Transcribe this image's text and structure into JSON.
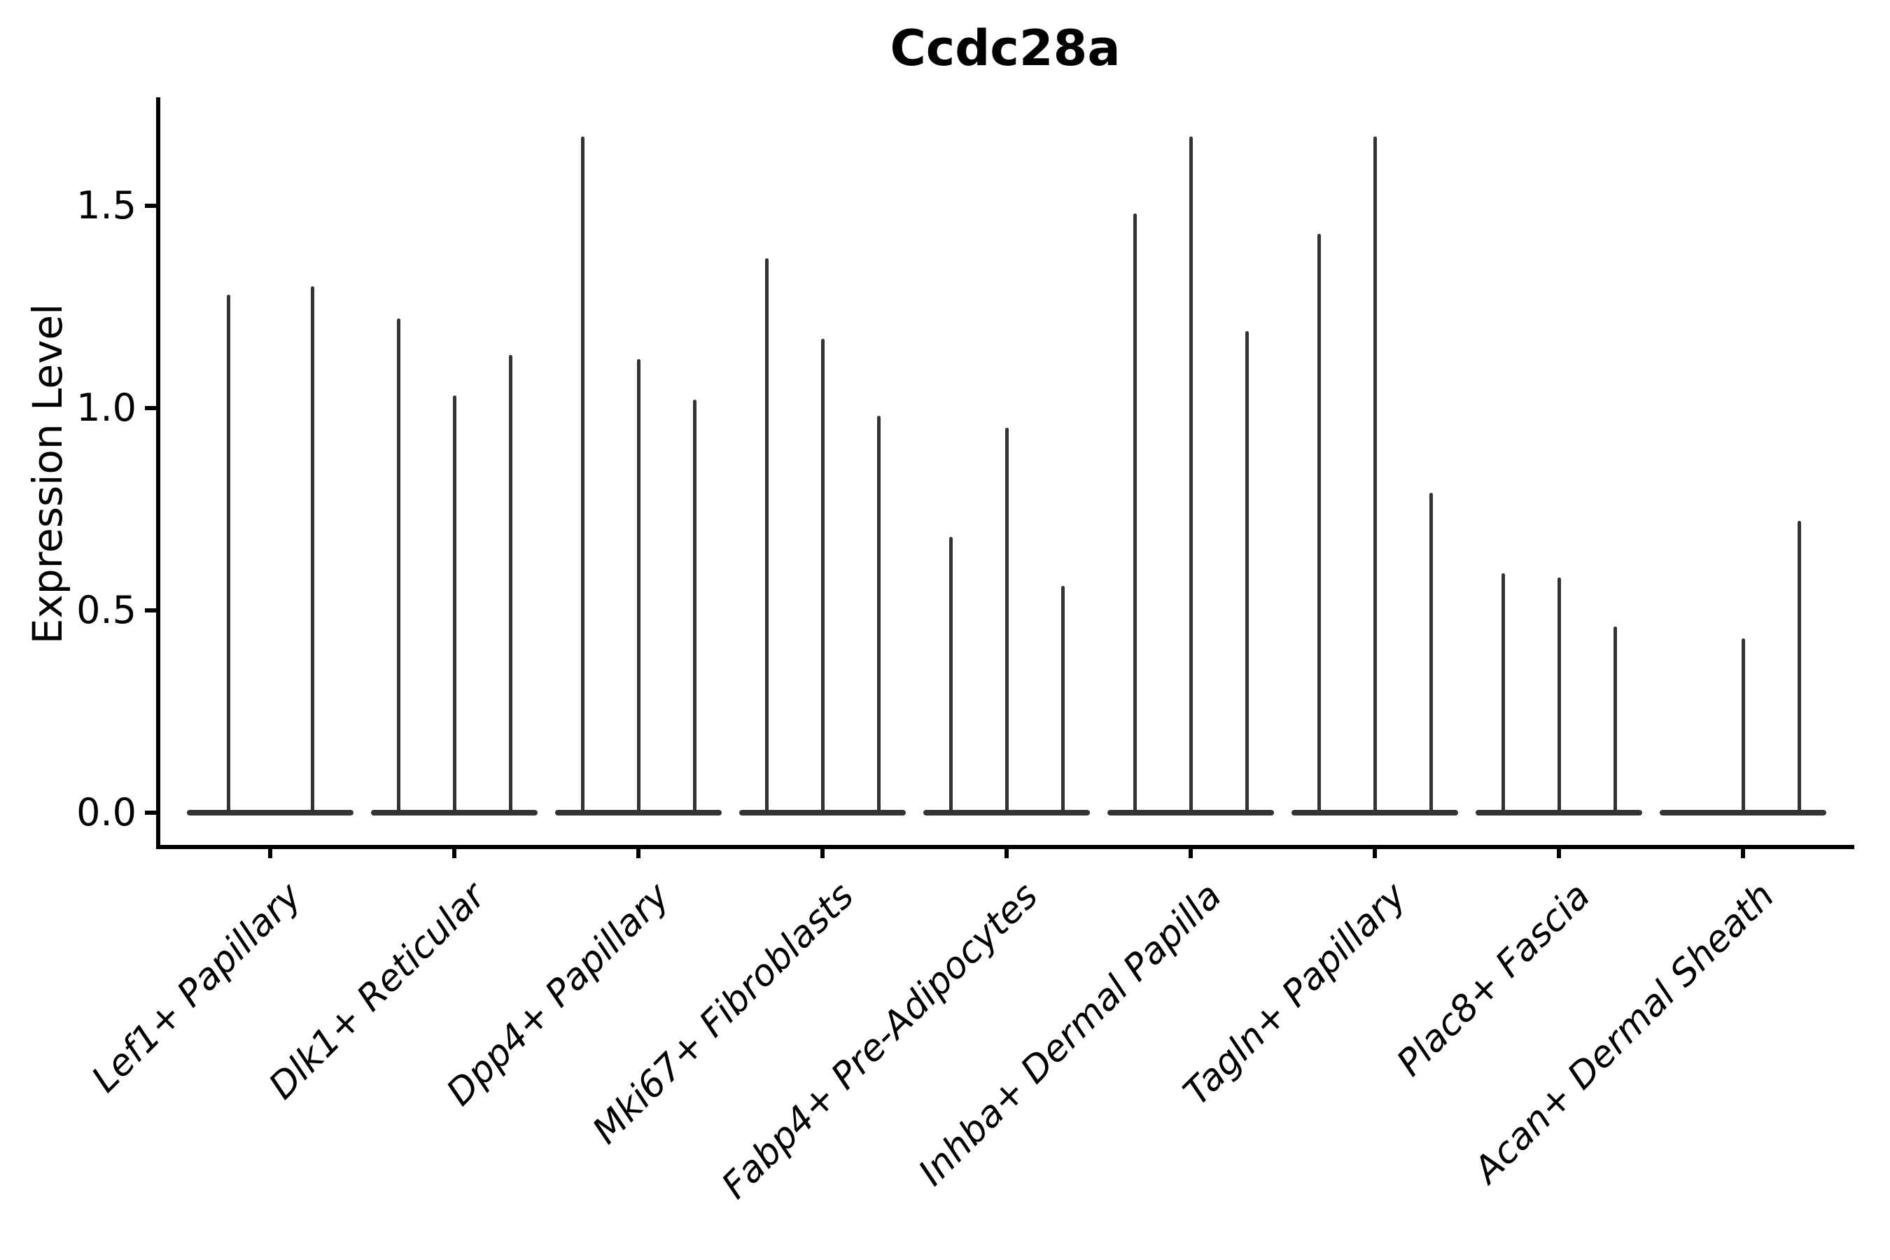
{
  "title": "Ccdc28a",
  "chart_data": {
    "type": "violin",
    "title": "Ccdc28a",
    "xlabel": "",
    "ylabel": "Expression Level",
    "ytick_labels": [
      "0.0",
      "0.5",
      "1.0",
      "1.5"
    ],
    "ytick_values": [
      0.0,
      0.5,
      1.0,
      1.5
    ],
    "ylim": [
      -0.09,
      1.77
    ],
    "grid": false,
    "legend_position": "none",
    "description": "Needle-thin violins: nearly all cells at expression 0 (wide flat base), sparse expressing cells form thin spikes up to the listed maximum expression value. Each cluster holds 2-3 sub-violins.",
    "categories": [
      {
        "label": "Lef1+ Papillary",
        "slots": 2,
        "spikes": [
          {
            "slot": 0,
            "value": 1.28
          },
          {
            "slot": 1,
            "value": 1.3
          }
        ]
      },
      {
        "label": "Dlk1+ Reticular",
        "slots": 3,
        "spikes": [
          {
            "slot": 0,
            "value": 1.22
          },
          {
            "slot": 1,
            "value": 1.03
          },
          {
            "slot": 2,
            "value": 1.13
          }
        ]
      },
      {
        "label": "Dpp4+ Papillary",
        "slots": 3,
        "spikes": [
          {
            "slot": 0,
            "value": 1.67
          },
          {
            "slot": 1,
            "value": 1.12
          },
          {
            "slot": 2,
            "value": 1.02
          }
        ]
      },
      {
        "label": "Mki67+ Fibroblasts",
        "slots": 3,
        "spikes": [
          {
            "slot": 0,
            "value": 1.37
          },
          {
            "slot": 1,
            "value": 1.17
          },
          {
            "slot": 2,
            "value": 0.98
          }
        ]
      },
      {
        "label": "Fabp4+ Pre-Adipocytes",
        "slots": 3,
        "spikes": [
          {
            "slot": 0,
            "value": 0.68
          },
          {
            "slot": 1,
            "value": 0.95
          },
          {
            "slot": 2,
            "value": 0.56
          }
        ]
      },
      {
        "label": "Inhba+ Dermal Papilla",
        "slots": 3,
        "spikes": [
          {
            "slot": 0,
            "value": 1.48
          },
          {
            "slot": 1,
            "value": 1.67
          },
          {
            "slot": 2,
            "value": 1.19
          }
        ]
      },
      {
        "label": "Tagln+ Papillary",
        "slots": 3,
        "spikes": [
          {
            "slot": 0,
            "value": 1.43
          },
          {
            "slot": 1,
            "value": 1.67
          },
          {
            "slot": 2,
            "value": 0.79
          }
        ]
      },
      {
        "label": "Plac8+ Fascia",
        "slots": 3,
        "spikes": [
          {
            "slot": 0,
            "value": 0.59
          },
          {
            "slot": 1,
            "value": 0.58
          },
          {
            "slot": 2,
            "value": 0.46
          }
        ]
      },
      {
        "label": "Acan+ Dermal Sheath",
        "slots": 3,
        "spikes": [
          {
            "slot": 1,
            "value": 0.43
          },
          {
            "slot": 2,
            "value": 0.72
          }
        ]
      }
    ],
    "colors": {
      "violin": "#333333",
      "axis": "#000000",
      "text": "#000000",
      "background": "#ffffff"
    }
  }
}
